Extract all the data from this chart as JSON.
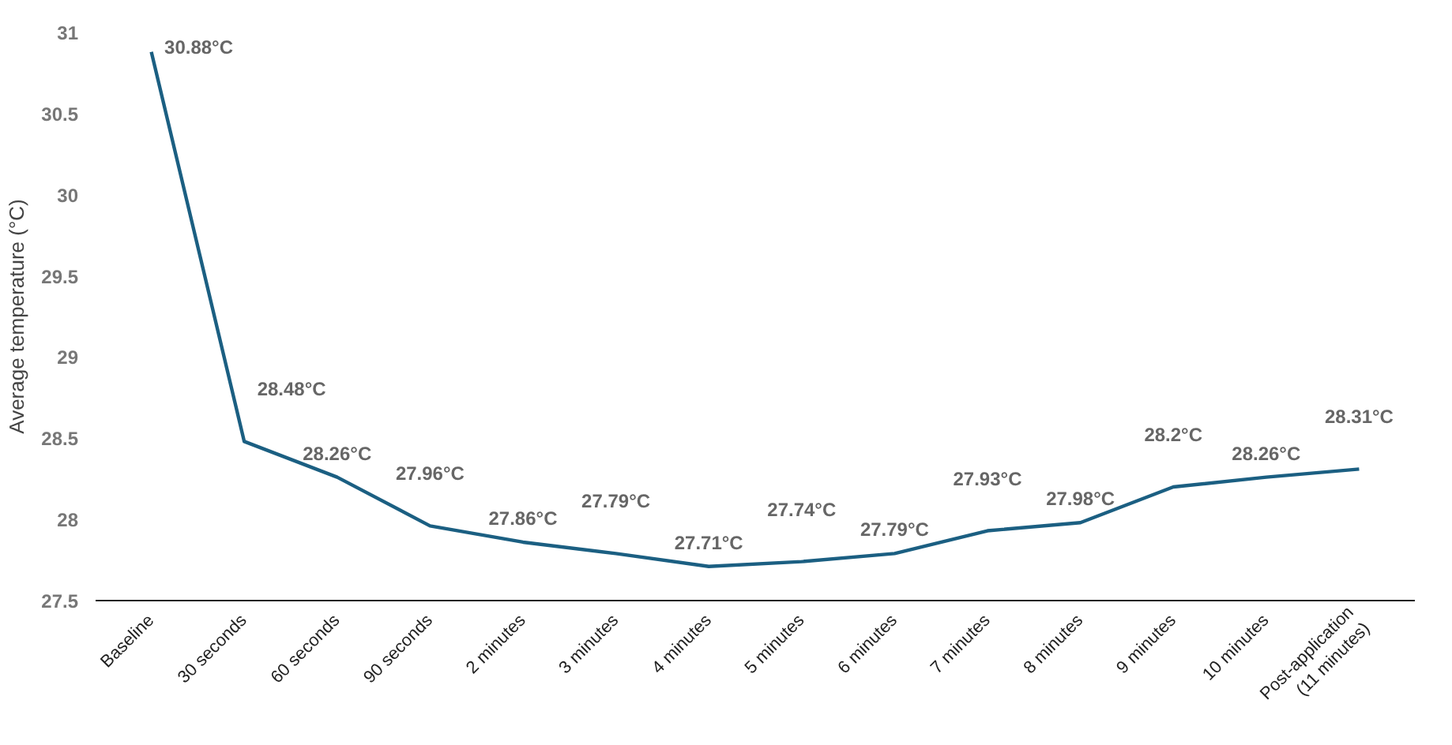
{
  "chart_data": {
    "type": "line",
    "ylabel": "Average temperature (°C)",
    "categories": [
      "Baseline",
      "30 seconds",
      "60 seconds",
      "90 seconds",
      "2 minutes",
      "3 minutes",
      "4 minutes",
      "5 minutes",
      "6 minutes",
      "7 minutes",
      "8 minutes",
      "9 minutes",
      "10 minutes",
      "Post-application\n(11 minutes)"
    ],
    "series": [
      {
        "color": "#1b5f82",
        "values": [
          30.88,
          28.48,
          28.26,
          27.96,
          27.86,
          27.79,
          27.71,
          27.74,
          27.79,
          27.93,
          27.98,
          28.2,
          28.26,
          28.31
        ],
        "value_labels": [
          "30.88°C",
          "28.48°C",
          "28.26°C",
          "27.96°C",
          "27.86°C",
          "27.79°C",
          "27.71°C",
          "27.74°C",
          "27.79°C",
          "27.93°C",
          "27.98°C",
          "28.2°C",
          "28.26°C",
          "28.31°C"
        ]
      }
    ],
    "ylim": [
      27.5,
      31
    ],
    "yticks": [
      27.5,
      28,
      28.5,
      29,
      29.5,
      30,
      30.5,
      31
    ],
    "grid": false,
    "marker": "none",
    "line_style": "solid"
  }
}
